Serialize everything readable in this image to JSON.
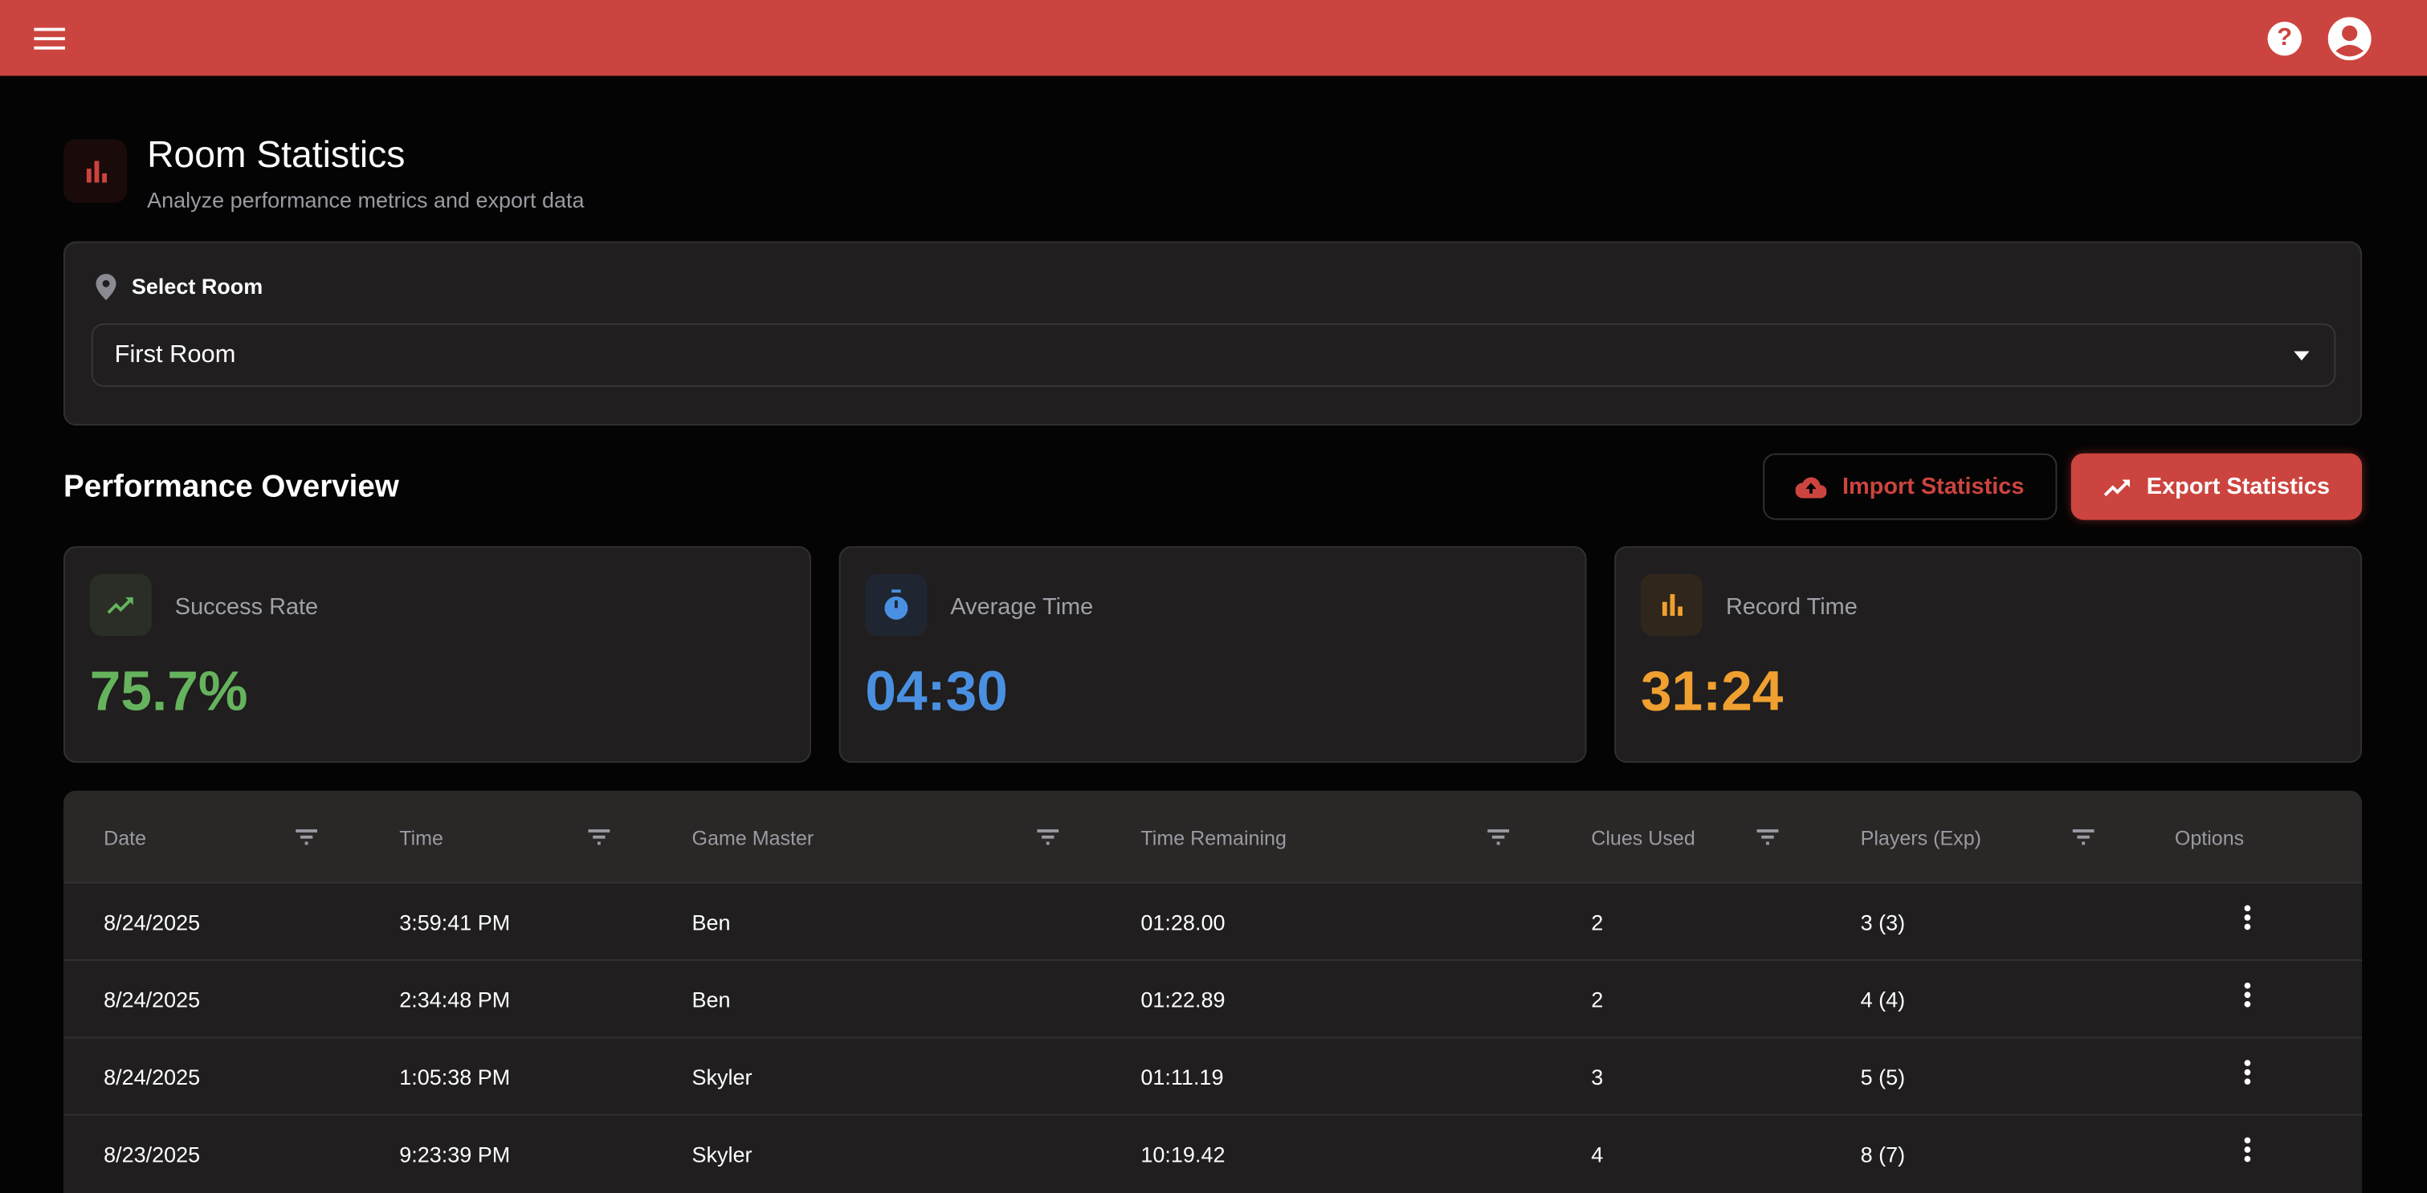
{
  "header": {
    "menu_icon": "hamburger-menu-icon",
    "help_icon": "help-circle-icon",
    "account_icon": "account-circle-icon",
    "color": "#cc443f"
  },
  "page": {
    "title": "Room Statistics",
    "subtitle": "Analyze performance metrics and export data",
    "icon": "bar-chart-icon"
  },
  "room_select": {
    "label": "Select Room",
    "icon": "location-pin-icon",
    "value": "First Room"
  },
  "overview": {
    "title": "Performance Overview",
    "import_label": "Import Statistics",
    "export_label": "Export Statistics"
  },
  "stats": [
    {
      "label": "Success Rate",
      "value": "75.7%",
      "color": "#66b35e",
      "icon": "trending-up-icon"
    },
    {
      "label": "Average Time",
      "value": "04:30",
      "color": "#4a90e2",
      "icon": "timer-icon"
    },
    {
      "label": "Record Time",
      "value": "31:24",
      "color": "#f0a030",
      "icon": "bar-chart-icon"
    }
  ],
  "table": {
    "columns": [
      "Date",
      "Time",
      "Game Master",
      "Time Remaining",
      "Clues Used",
      "Players (Exp)",
      "Options"
    ],
    "rows": [
      [
        "8/24/2025",
        "3:59:41 PM",
        "Ben",
        "01:28.00",
        "2",
        "3 (3)"
      ],
      [
        "8/24/2025",
        "2:34:48 PM",
        "Ben",
        "01:22.89",
        "2",
        "4 (4)"
      ],
      [
        "8/24/2025",
        "1:05:38 PM",
        "Skyler",
        "01:11.19",
        "3",
        "5 (5)"
      ],
      [
        "8/23/2025",
        "9:23:39 PM",
        "Skyler",
        "10:19.42",
        "4",
        "8 (7)"
      ]
    ]
  }
}
